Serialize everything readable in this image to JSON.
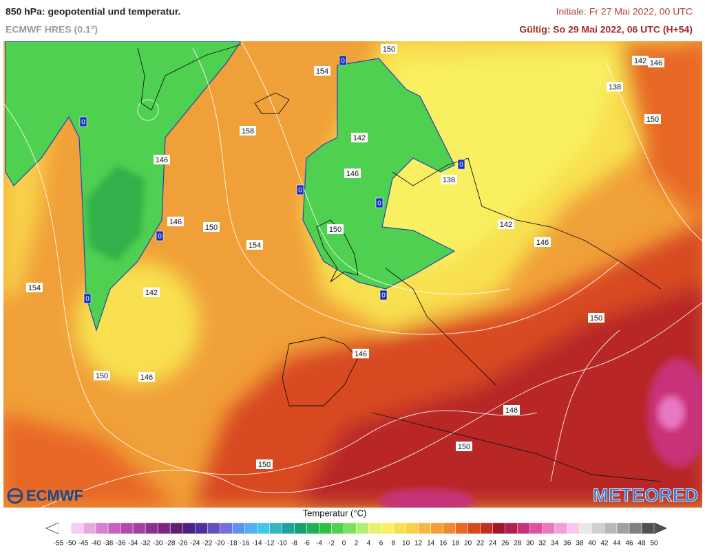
{
  "header": {
    "title": "850 hPa: geopotential und temperatur.",
    "subtitle": "ECMWF HRES (0.1°)",
    "initiale": "Initiale: Fr 27 Mai 2022, 00 UTC",
    "gueltig": "Gültig: So 29 Mai 2022, 06 UTC (H+54)"
  },
  "map": {
    "contour_labels": [
      150,
      154,
      142,
      146,
      138,
      150,
      158,
      142,
      146,
      146,
      138,
      146,
      150,
      150,
      142,
      154,
      146,
      154,
      142,
      150,
      146,
      150,
      146,
      146,
      150,
      150
    ],
    "freezing_labels": [
      0,
      0,
      0,
      0,
      0,
      0,
      0,
      0
    ]
  },
  "logos": {
    "left": "ECMWF",
    "right": "METEORED"
  },
  "legend": {
    "title": "Temperatur (°C)",
    "ticks": [
      -55,
      -50,
      -45,
      -40,
      -38,
      -36,
      -34,
      -32,
      -30,
      -28,
      -26,
      -24,
      -22,
      -20,
      -18,
      -16,
      -14,
      -12,
      -10,
      -8,
      -6,
      -4,
      -2,
      0,
      2,
      4,
      6,
      8,
      10,
      12,
      14,
      16,
      18,
      20,
      22,
      24,
      26,
      28,
      30,
      32,
      34,
      36,
      38,
      40,
      42,
      44,
      46,
      48,
      50
    ],
    "colors": [
      "#ffffff",
      "#f5d0f0",
      "#e8a8e0",
      "#d880d0",
      "#c860c0",
      "#b848b0",
      "#a040a0",
      "#8c3090",
      "#782880",
      "#602070",
      "#502080",
      "#5030a0",
      "#6050c0",
      "#7070e0",
      "#6090f0",
      "#50b0f0",
      "#40c8e8",
      "#30b8c0",
      "#20a0a0",
      "#18a070",
      "#20b050",
      "#30c040",
      "#50d050",
      "#80e060",
      "#b0f070",
      "#e8f070",
      "#f8f060",
      "#f8e050",
      "#f8d048",
      "#f8b840",
      "#f0a038",
      "#f08830",
      "#e86828",
      "#d84820",
      "#c03020",
      "#a01828",
      "#b02050",
      "#c83078",
      "#e050a0",
      "#e878c0",
      "#f0a0d8",
      "#f8c8e8",
      "#e8e8e8",
      "#d0d0d0",
      "#b8b8b8",
      "#a0a0a0",
      "#808080",
      "#505050"
    ]
  }
}
